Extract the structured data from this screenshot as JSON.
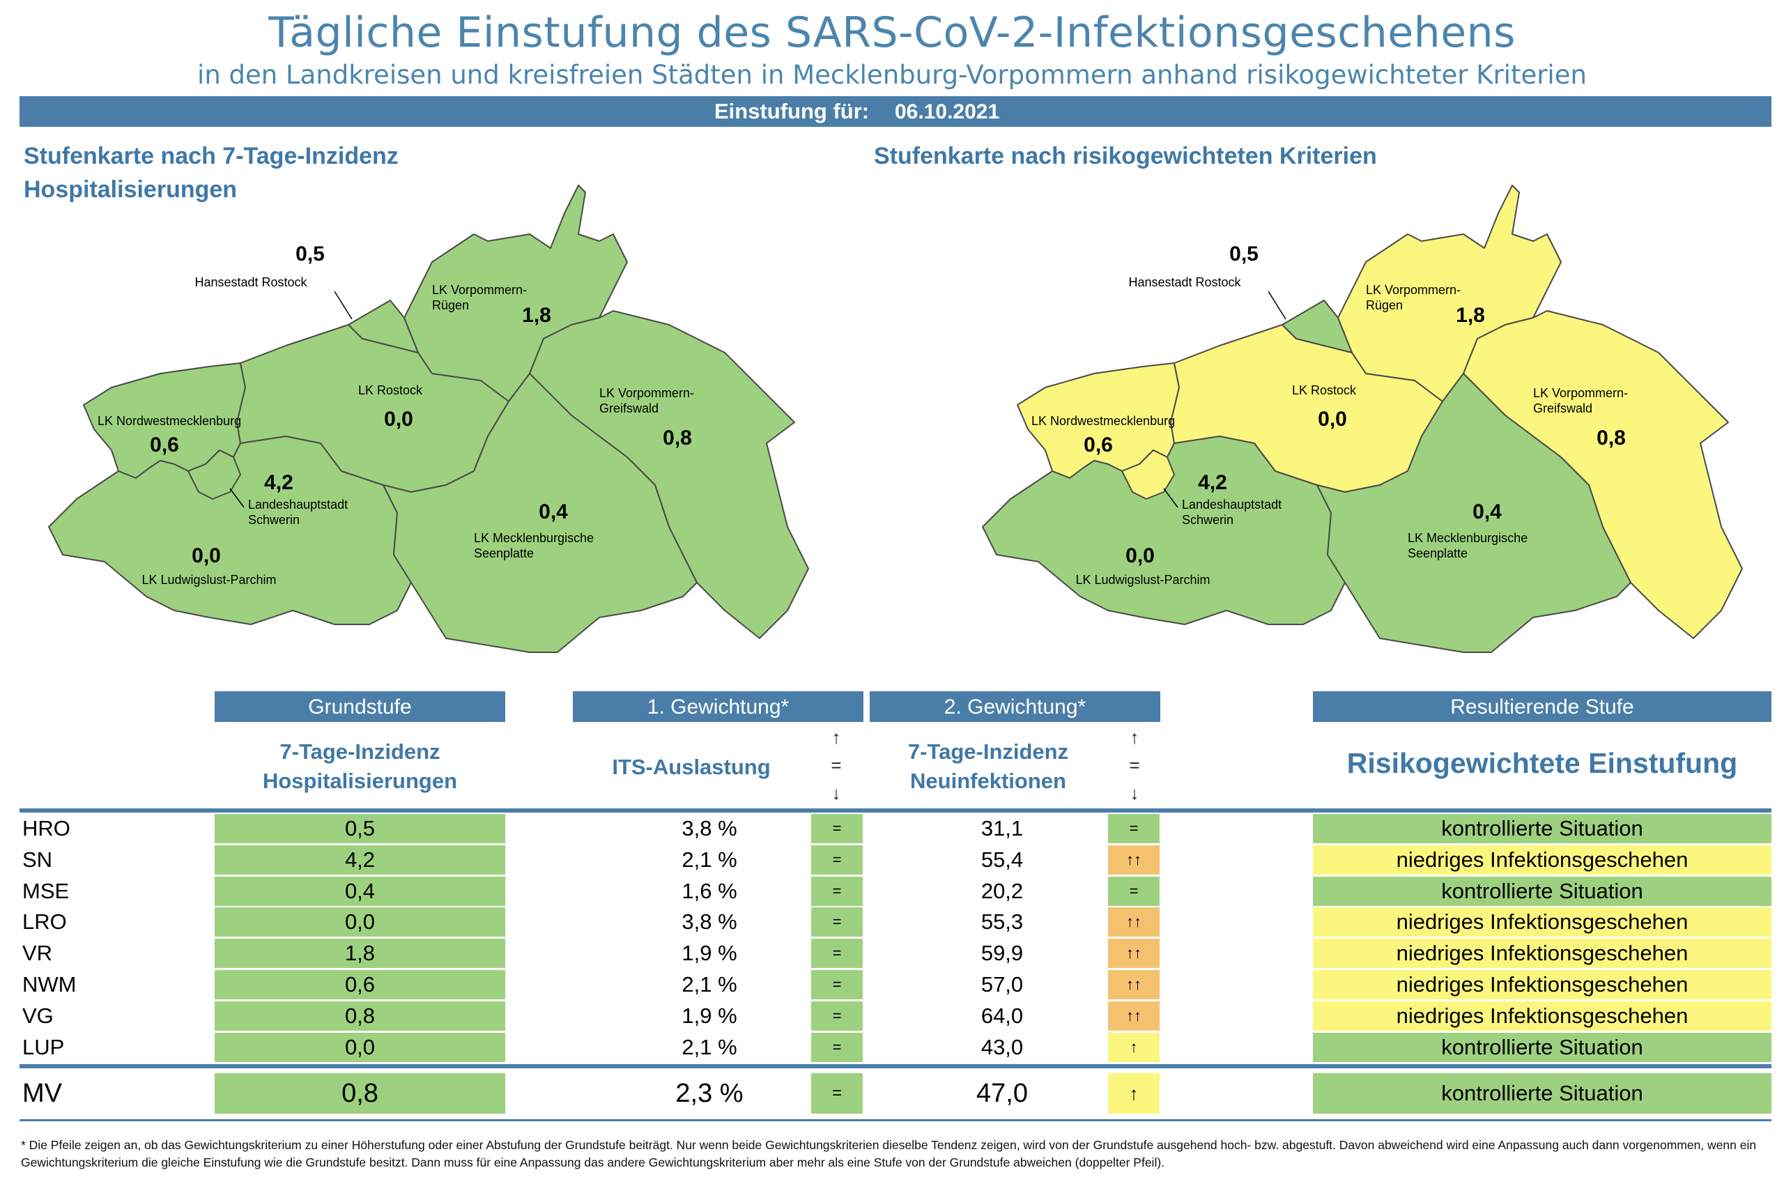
{
  "title": "Tägliche Einstufung des SARS-CoV-2-Infektionsgeschehens",
  "subtitle": "in den Landkreisen und kreisfreien Städten in Mecklenburg-Vorpommern anhand risikogewichteter Kriterien",
  "date_label": "Einstufung für:",
  "date": "06.10.2021",
  "maps": {
    "left": {
      "title": "Stufenkarte nach 7-Tage-Inzidenz Hospitalisierungen"
    },
    "right": {
      "title": "Stufenkarte nach risikogewichteten Kriterien"
    }
  },
  "regions": {
    "HRO": {
      "name": "Hansestadt Rostock",
      "value": "0,5",
      "left_color": "green",
      "right_color": "green"
    },
    "VR": {
      "name": "LK Vorpommern-Rügen",
      "value": "1,8",
      "left_color": "green",
      "right_color": "yellow"
    },
    "LRO": {
      "name": "LK Rostock",
      "value": "0,0",
      "left_color": "green",
      "right_color": "yellow"
    },
    "VG": {
      "name": "LK Vorpommern-Greifswald",
      "value": "0,8",
      "left_color": "green",
      "right_color": "yellow"
    },
    "NWM": {
      "name": "LK Nordwestmecklenburg",
      "value": "0,6",
      "left_color": "green",
      "right_color": "yellow"
    },
    "SN": {
      "name": "Landeshauptstadt Schwerin",
      "value": "4,2",
      "left_color": "green",
      "right_color": "yellow"
    },
    "MSE": {
      "name": "LK Mecklenburgische Seenplatte",
      "value": "0,4",
      "left_color": "green",
      "right_color": "green"
    },
    "LUP": {
      "name": "LK Ludwigslust-Parchim",
      "value": "0,0",
      "left_color": "green",
      "right_color": "green"
    }
  },
  "table": {
    "headers": {
      "grundstufe": "Grundstufe",
      "gew1": "1. Gewichtung*",
      "gew2": "2. Gewichtung*",
      "result": "Resultierende Stufe"
    },
    "subheaders": {
      "grundstufe_l1": "7-Tage-Inzidenz",
      "grundstufe_l2": "Hospitalisierungen",
      "gew1": "ITS-Auslastung",
      "gew2_l1": "7-Tage-Inzidenz",
      "gew2_l2": "Neuinfektionen",
      "result": "Risikogewichtete Einstufung"
    },
    "arrow_key": {
      "up": "↑",
      "eq": "=",
      "down": "↓"
    },
    "rows": [
      {
        "code": "HRO",
        "grund": "0,5",
        "its": "3,8 %",
        "its_trend": "=",
        "inz": "31,1",
        "inz_trend": "=",
        "inz_trend_color": "green",
        "result": "kontrollierte Situation",
        "result_color": "green"
      },
      {
        "code": "SN",
        "grund": "4,2",
        "its": "2,1 %",
        "its_trend": "=",
        "inz": "55,4",
        "inz_trend": "↑↑",
        "inz_trend_color": "orange",
        "result": "niedriges Infektionsgeschehen",
        "result_color": "yellow"
      },
      {
        "code": "MSE",
        "grund": "0,4",
        "its": "1,6 %",
        "its_trend": "=",
        "inz": "20,2",
        "inz_trend": "=",
        "inz_trend_color": "green",
        "result": "kontrollierte Situation",
        "result_color": "green"
      },
      {
        "code": "LRO",
        "grund": "0,0",
        "its": "3,8 %",
        "its_trend": "=",
        "inz": "55,3",
        "inz_trend": "↑↑",
        "inz_trend_color": "orange",
        "result": "niedriges Infektionsgeschehen",
        "result_color": "yellow"
      },
      {
        "code": "VR",
        "grund": "1,8",
        "its": "1,9 %",
        "its_trend": "=",
        "inz": "59,9",
        "inz_trend": "↑↑",
        "inz_trend_color": "orange",
        "result": "niedriges Infektionsgeschehen",
        "result_color": "yellow"
      },
      {
        "code": "NWM",
        "grund": "0,6",
        "its": "2,1 %",
        "its_trend": "=",
        "inz": "57,0",
        "inz_trend": "↑↑",
        "inz_trend_color": "orange",
        "result": "niedriges Infektionsgeschehen",
        "result_color": "yellow"
      },
      {
        "code": "VG",
        "grund": "0,8",
        "its": "1,9 %",
        "its_trend": "=",
        "inz": "64,0",
        "inz_trend": "↑↑",
        "inz_trend_color": "orange",
        "result": "niedriges Infektionsgeschehen",
        "result_color": "yellow"
      },
      {
        "code": "LUP",
        "grund": "0,0",
        "its": "2,1 %",
        "its_trend": "=",
        "inz": "43,0",
        "inz_trend": "↑",
        "inz_trend_color": "yellow",
        "result": "kontrollierte Situation",
        "result_color": "green"
      }
    ],
    "total": {
      "code": "MV",
      "grund": "0,8",
      "its": "2,3 %",
      "its_trend": "=",
      "inz": "47,0",
      "inz_trend": "↑",
      "inz_trend_color": "yellow",
      "result": "kontrollierte Situation",
      "result_color": "green"
    }
  },
  "footnote": "* Die Pfeile zeigen an, ob das Gewichtungskriterium zu einer Höherstufung oder einer Abstufung der Grundstufe beiträgt. Nur wenn beide Gewichtungskriterien dieselbe Tendenz zeigen, wird von der Grundstufe ausgehend hoch- bzw. abgestuft.  Davon abweichend wird eine Anpassung auch dann vorgenommen, wenn ein Gewichtungskriterium die gleiche Einstufung wie die Grundstufe besitzt. Dann muss für eine Anpassung das andere Gewichtungskriterium aber mehr als eine Stufe von der Grundstufe abweichen (doppelter Pfeil).",
  "colors": {
    "accent": "#4a7ea8",
    "title": "#4b85ad",
    "green": "#9dd17f",
    "yellow": "#fbf67e",
    "orange": "#f4c26f",
    "border": "#4a4a4a"
  }
}
